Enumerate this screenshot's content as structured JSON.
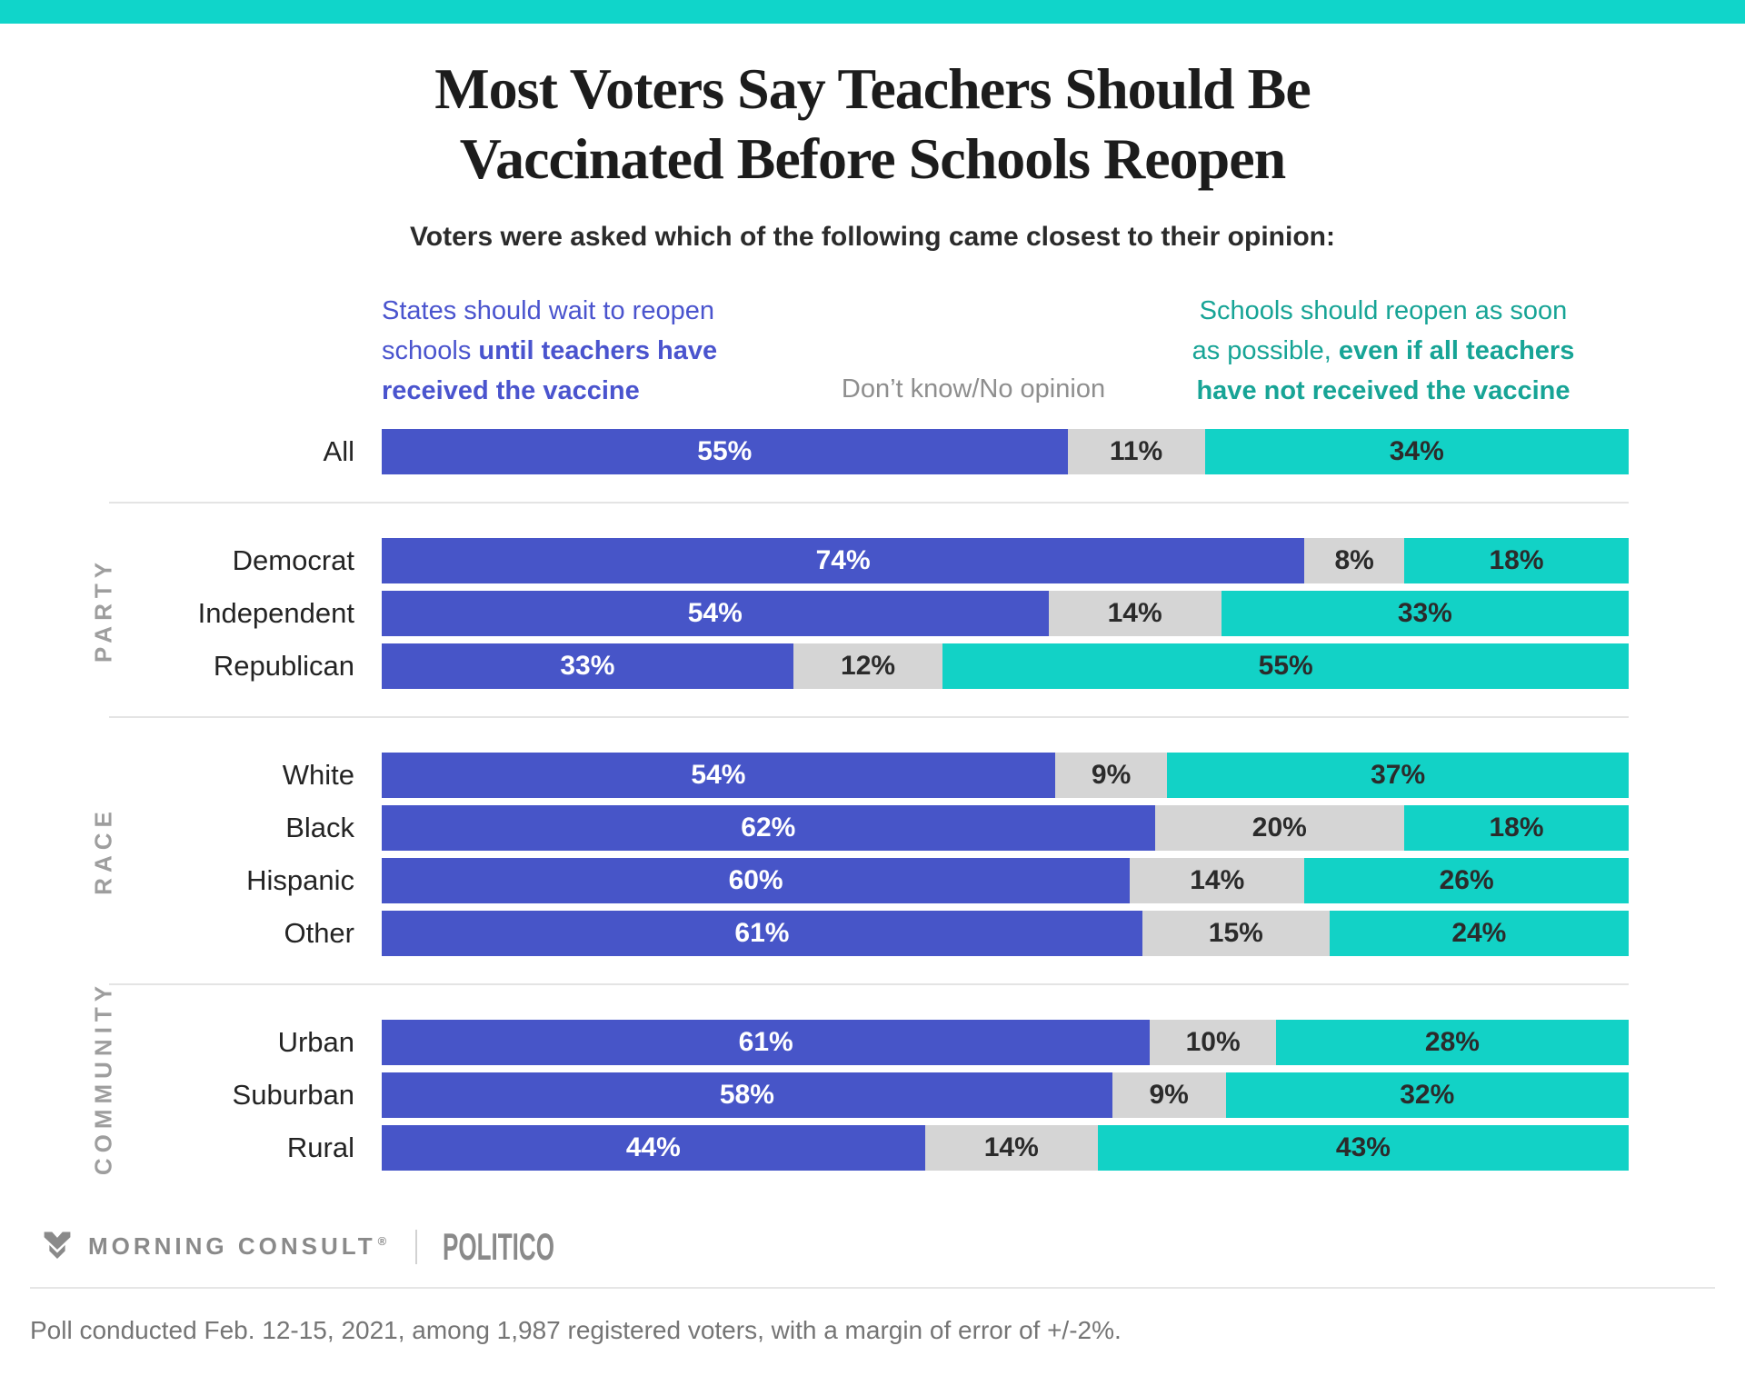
{
  "colors": {
    "strip": "#10d5ca",
    "wait": "#4755c8",
    "dk": "#d5d5d5",
    "reopen": "#12d2c6",
    "wait_text": "#4a54ce",
    "dk_text": "#8e8e8e",
    "reopen_text": "#17a496"
  },
  "title": {
    "line1": "Most Voters Say Teachers Should Be",
    "line2": "Vaccinated Before Schools Reopen"
  },
  "subtitle": "Voters were asked which of the following came closest to their opinion:",
  "legend": {
    "wait": {
      "line1": "States should wait to reopen",
      "line2_regular": "schools ",
      "line2_bold": "until teachers have",
      "line3_bold": "received the vaccine"
    },
    "dont_know": {
      "label": "Don’t know/No opinion"
    },
    "reopen": {
      "line1": "Schools should reopen as soon",
      "line2_regular": "as possible, ",
      "line2_bold": "even if all teachers",
      "line3_bold": "have not received the vaccine"
    }
  },
  "chart_data": {
    "type": "bar",
    "orientation": "horizontal",
    "stacked": true,
    "unit": "%",
    "xlim": [
      0,
      100
    ],
    "series": [
      "States should wait to reopen schools until teachers have received the vaccine",
      "Don’t know/No opinion",
      "Schools should reopen as soon as possible, even if all teachers have not received the vaccine"
    ],
    "series_colors": [
      "#4755c8",
      "#d5d5d5",
      "#12d2c6"
    ],
    "groups": [
      {
        "section": "",
        "rows": [
          {
            "label": "All",
            "values": [
              55,
              11,
              34
            ]
          }
        ]
      },
      {
        "section": "PARTY",
        "rows": [
          {
            "label": "Democrat",
            "values": [
              74,
              8,
              18
            ]
          },
          {
            "label": "Independent",
            "values": [
              54,
              14,
              33
            ]
          },
          {
            "label": "Republican",
            "values": [
              33,
              12,
              55
            ]
          }
        ]
      },
      {
        "section": "RACE",
        "rows": [
          {
            "label": "White",
            "values": [
              54,
              9,
              37
            ]
          },
          {
            "label": "Black",
            "values": [
              62,
              20,
              18
            ]
          },
          {
            "label": "Hispanic",
            "values": [
              60,
              14,
              26
            ]
          },
          {
            "label": "Other",
            "values": [
              61,
              15,
              24
            ]
          }
        ]
      },
      {
        "section": "COMMUNITY",
        "rows": [
          {
            "label": "Urban",
            "values": [
              61,
              10,
              28
            ]
          },
          {
            "label": "Suburban",
            "values": [
              58,
              9,
              32
            ]
          },
          {
            "label": "Rural",
            "values": [
              44,
              14,
              43
            ]
          }
        ]
      }
    ]
  },
  "footer": {
    "brand1": "MORNING CONSULT",
    "registered_mark": "®",
    "brand2": "POLITICO",
    "note": "Poll conducted Feb. 12-15, 2021, among 1,987 registered voters, with a margin of error of +/-2%."
  }
}
